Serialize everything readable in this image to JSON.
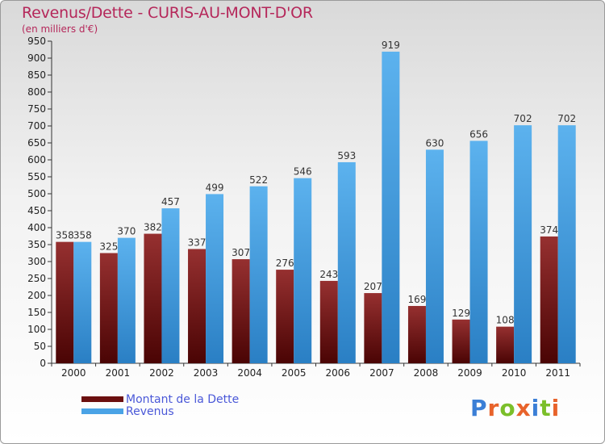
{
  "header": {
    "title": "Revenus/Dette - CURIS-AU-MONT-D'OR",
    "subtitle": "(en milliers d'€)"
  },
  "chart_data": {
    "type": "bar",
    "title": "Revenus/Dette - CURIS-AU-MONT-D'OR",
    "subtitle": "(en milliers d'€)",
    "categories": [
      "2000",
      "2001",
      "2002",
      "2003",
      "2004",
      "2005",
      "2006",
      "2007",
      "2008",
      "2009",
      "2010",
      "2011"
    ],
    "series": [
      {
        "name": "Montant de la Dette",
        "color": "#7a1515",
        "values": [
          358,
          325,
          382,
          337,
          307,
          276,
          243,
          207,
          169,
          129,
          108,
          374
        ]
      },
      {
        "name": "Revenus",
        "color": "#4aa3e6",
        "values": [
          358,
          370,
          457,
          499,
          522,
          546,
          593,
          919,
          630,
          656,
          702,
          702
        ]
      }
    ],
    "ylim": [
      0,
      950
    ],
    "ytick_step": 50,
    "grid": false,
    "legend_position": "bottom-left"
  },
  "legend": {
    "items": [
      {
        "label": "Montant de la Dette",
        "color": "#6b0f0f"
      },
      {
        "label": "Revenus",
        "color": "#4aa3e6"
      }
    ]
  },
  "logo": {
    "letters": [
      "P",
      "r",
      "o",
      "x",
      "i",
      "t",
      "i"
    ],
    "colors": [
      "#3b7fd6",
      "#e8632b",
      "#7bbf2a",
      "#e8632b",
      "#3b7fd6",
      "#7bbf2a",
      "#e8632b"
    ]
  }
}
